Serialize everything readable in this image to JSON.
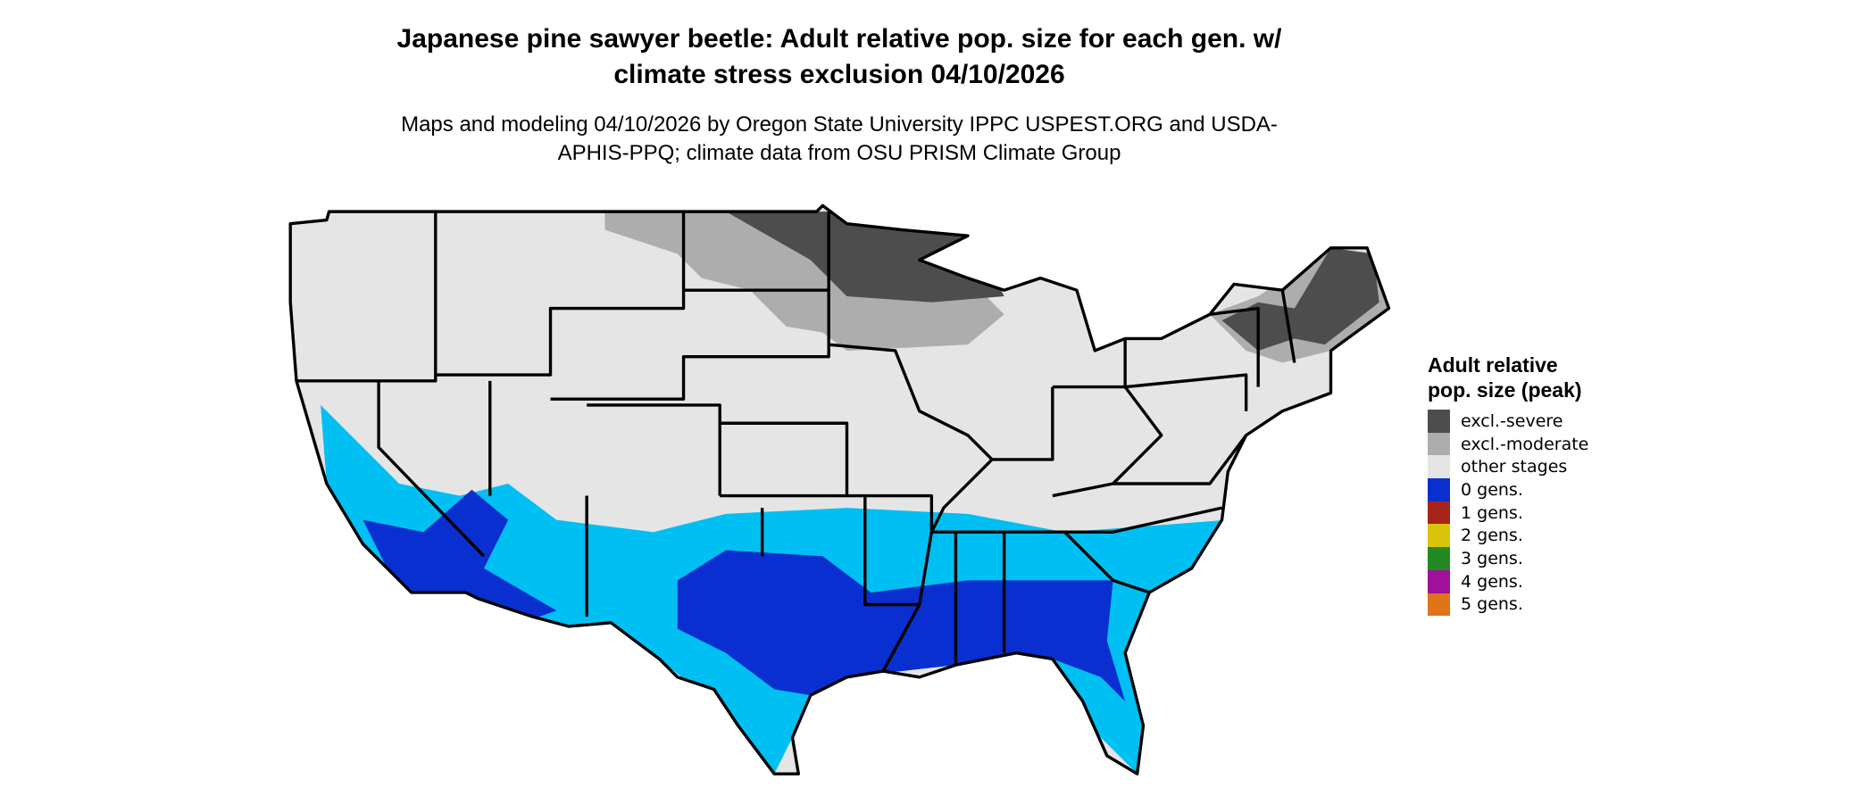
{
  "title": "Japanese pine sawyer beetle: Adult relative pop. size for each gen. w/ climate stress exclusion 04/10/2026",
  "subtitle": "Maps and modeling 04/10/2026 by Oregon State University IPPC USPEST.ORG and USDA-APHIS-PPQ; climate data from OSU PRISM Climate Group",
  "legend": {
    "title": "Adult relative pop. size (peak)",
    "items": [
      {
        "label": "excl.-severe",
        "color": "#4d4d4d"
      },
      {
        "label": "excl.-moderate",
        "color": "#adadad"
      },
      {
        "label": "other stages",
        "color": "#e5e5e5"
      },
      {
        "label": "0 gens.",
        "color": "#0a2fd0"
      },
      {
        "label": "1 gens.",
        "color": "#a82418"
      },
      {
        "label": "2 gens.",
        "color": "#d8c40a"
      },
      {
        "label": "3 gens.",
        "color": "#238a23"
      },
      {
        "label": "4 gens.",
        "color": "#a0109c"
      },
      {
        "label": "5 gens.",
        "color": "#e07418"
      }
    ]
  }
}
